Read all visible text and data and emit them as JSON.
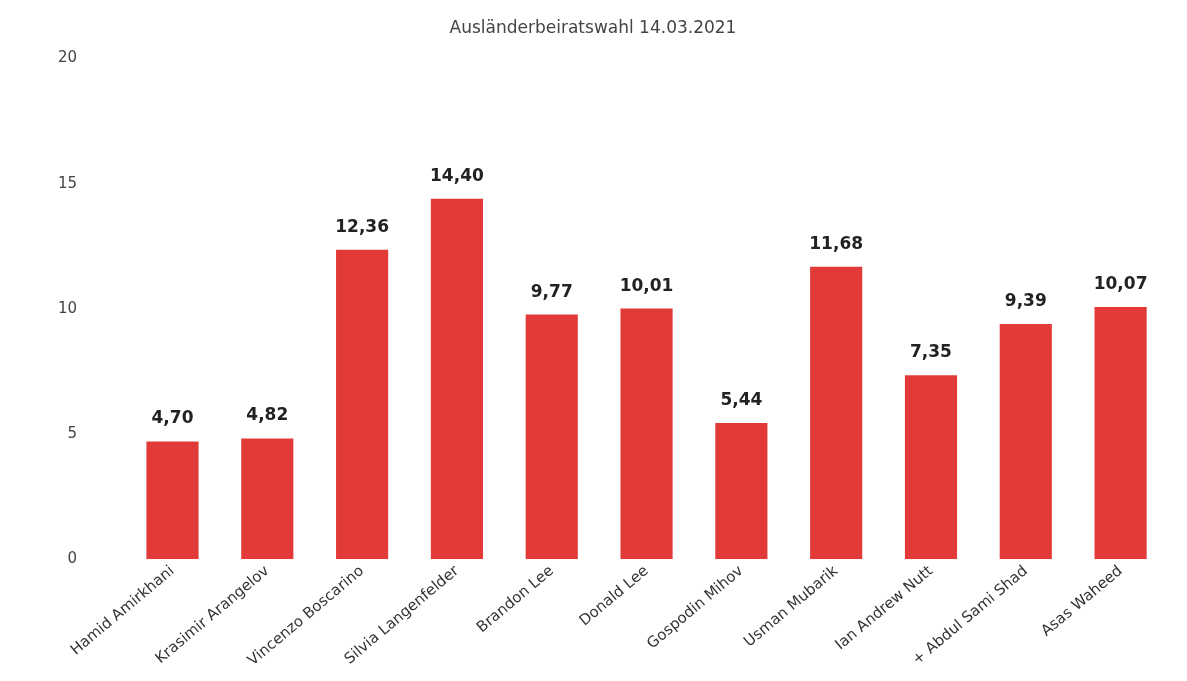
{
  "chart_data": {
    "type": "bar",
    "title": "Ausländerbeiratswahl 14.03.2021",
    "categories": [
      "Hamid Amirkhani",
      "Krasimir Arangelov",
      "Vincenzo Boscarino",
      "Silvia Langenfelder",
      "Brandon Lee",
      "Donald Lee",
      "Gospodin Mihov",
      "Usman Mubarik",
      "Ian Andrew Nutt",
      "+ Abdul Sami Shad",
      "Asas Waheed"
    ],
    "values": [
      4.7,
      4.82,
      12.36,
      14.4,
      9.77,
      10.01,
      5.44,
      11.68,
      7.35,
      9.39,
      10.07
    ],
    "value_labels": [
      "4,70",
      "4,82",
      "12,36",
      "14,40",
      "9,77",
      "10,01",
      "5,44",
      "11,68",
      "7,35",
      "9,39",
      "10,07"
    ],
    "color": "#e23a38",
    "ylim": [
      0,
      20
    ],
    "yticks": [
      0,
      5,
      10,
      15,
      20
    ],
    "grid": false,
    "legend": false
  }
}
